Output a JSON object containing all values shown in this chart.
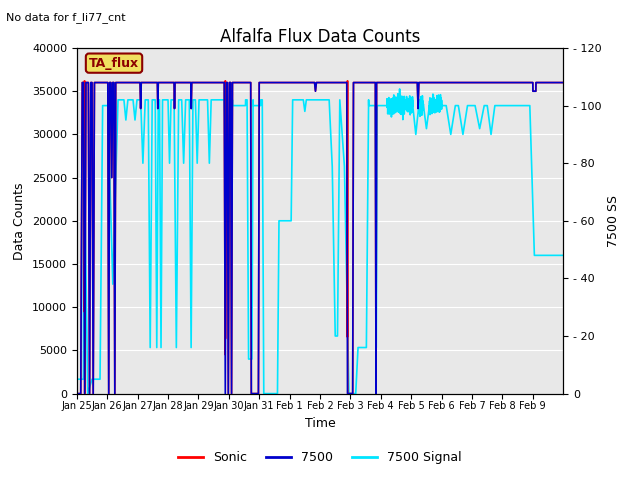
{
  "title": "Alfalfa Flux Data Counts",
  "xlabel": "Time",
  "ylabel_left": "Data Counts",
  "ylabel_right": "7500 SS",
  "no_data_text": "No data for f_li77_cnt",
  "ta_flux_label": "TA_flux",
  "ylim_left": [
    0,
    40000
  ],
  "ylim_right": [
    0,
    120
  ],
  "fig_bg_color": "#ffffff",
  "plot_bg_color": "#e8e8e8",
  "grid_color": "#ffffff",
  "sonic_color": "#ff0000",
  "c7500_color": "#0000cc",
  "signal_color": "#00e5ff",
  "legend_entries": [
    "Sonic",
    "7500",
    "7500 Signal"
  ],
  "sonic_lw": 1.2,
  "c7500_lw": 1.2,
  "signal_lw": 1.2,
  "title_fontsize": 12,
  "axis_label_fontsize": 9,
  "tick_fontsize": 8
}
